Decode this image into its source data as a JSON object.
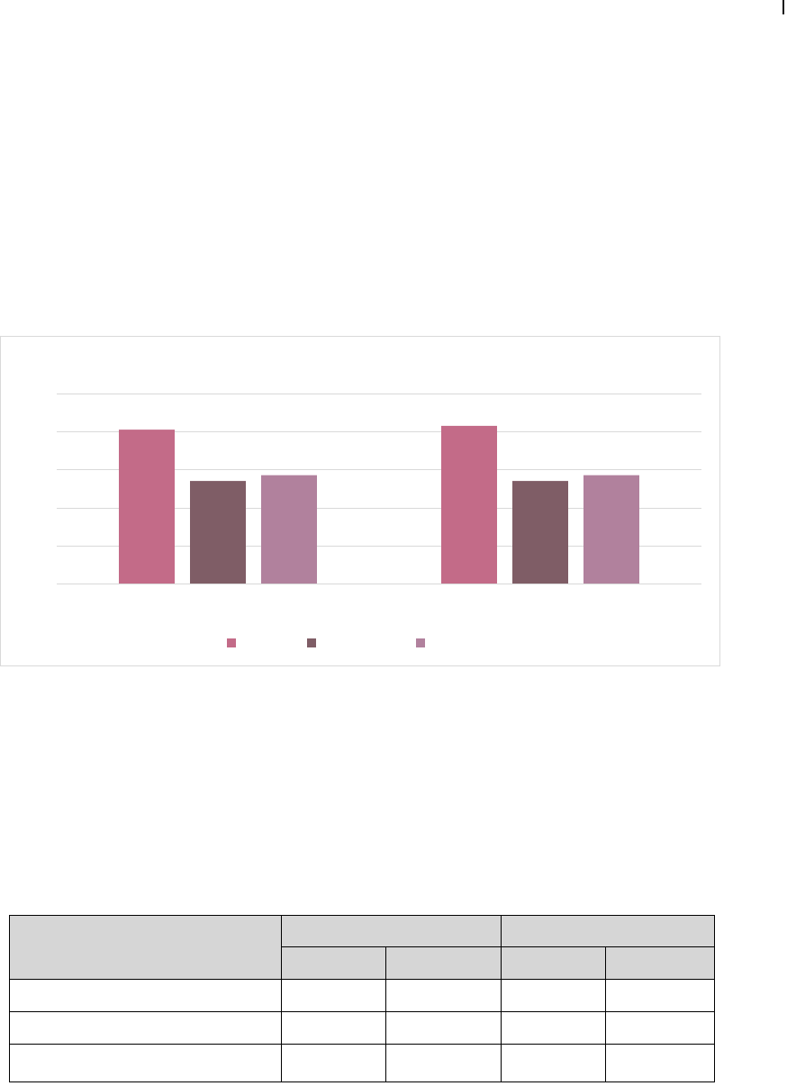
{
  "chart_data": {
    "type": "bar",
    "categories": [
      "",
      ""
    ],
    "series": [
      {
        "color": "#c36b88",
        "values": [
          4.05,
          4.15
        ]
      },
      {
        "color": "#7f5d66",
        "values": [
          2.7,
          2.7
        ]
      },
      {
        "color": "#b1819d",
        "values": [
          2.85,
          2.85
        ]
      }
    ],
    "ylim": [
      0,
      5
    ],
    "gridlines": [
      0,
      1,
      2,
      3,
      4,
      5
    ],
    "grid": true,
    "legend": "bottom",
    "title": "",
    "xlabel": "",
    "ylabel": ""
  },
  "table": {
    "header_top": [
      "",
      "",
      ""
    ],
    "header_sub": [
      "",
      "",
      "",
      ""
    ],
    "rows": [
      [
        "",
        "",
        "",
        "",
        ""
      ],
      [
        "",
        "",
        "",
        "",
        ""
      ],
      [
        "",
        "",
        "",
        "",
        ""
      ]
    ]
  }
}
